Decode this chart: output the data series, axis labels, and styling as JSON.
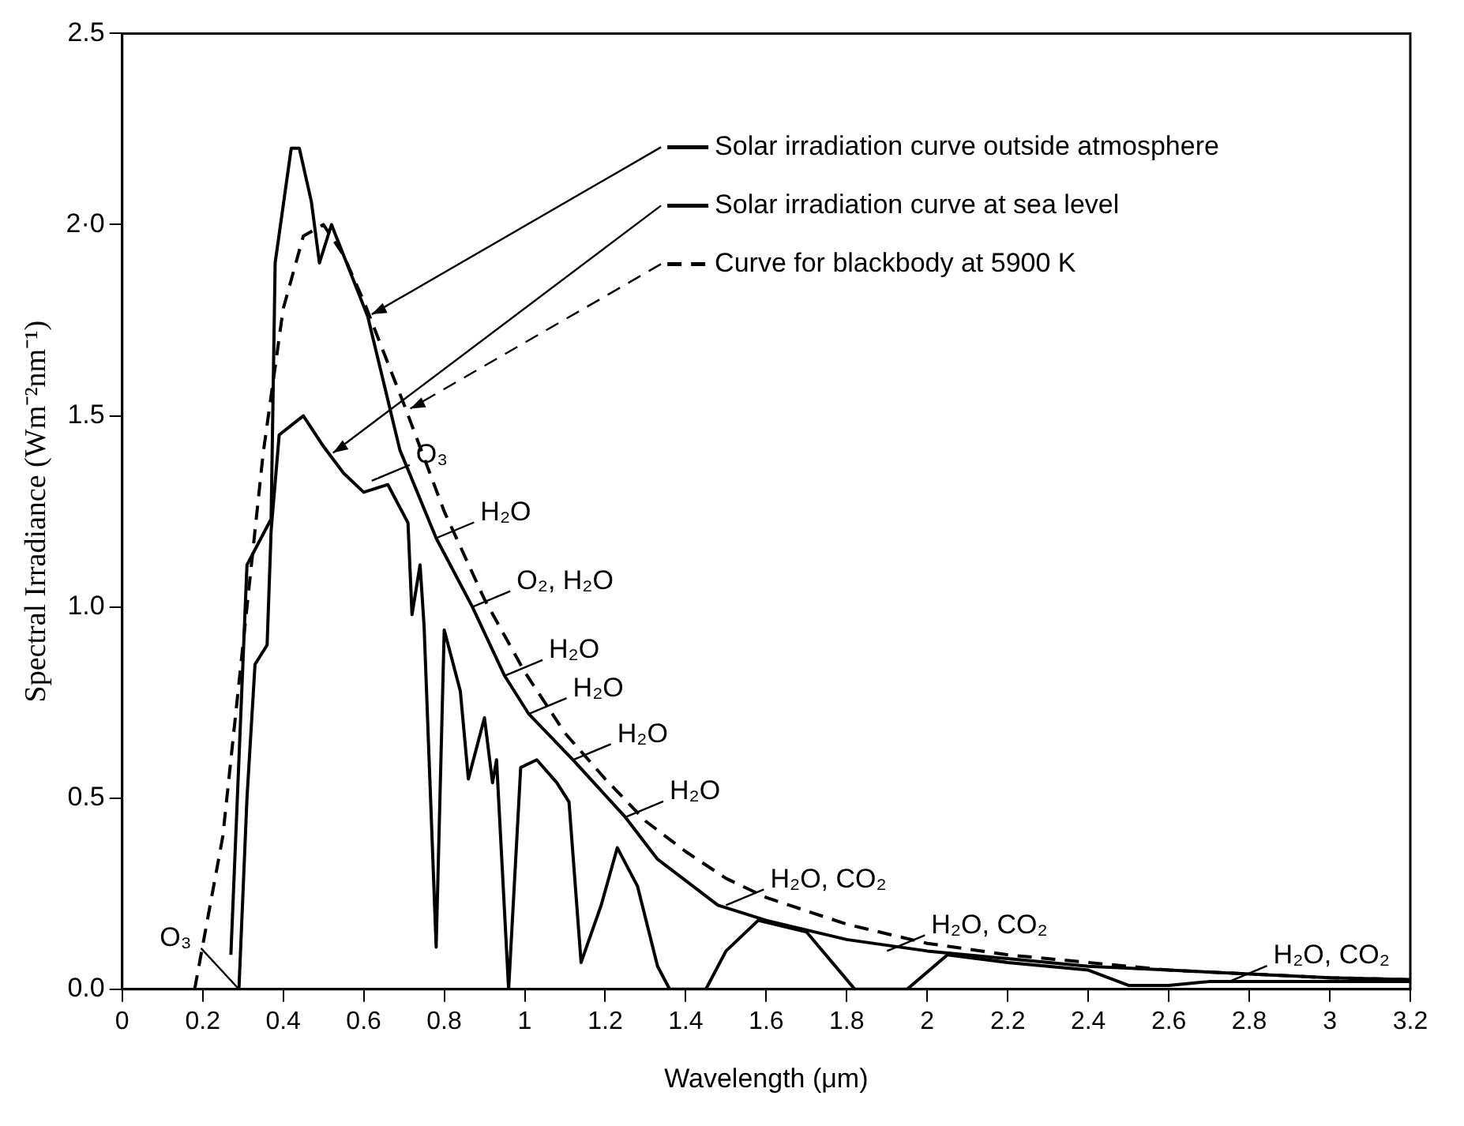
{
  "chart_data": {
    "type": "line",
    "xlabel": "Wavelength (μm)",
    "ylabel": "Spectral Irradiance (Wm⁻²nm⁻¹)",
    "xlim": [
      0,
      3.2
    ],
    "xticks": [
      0,
      0.2,
      0.4,
      0.6,
      0.8,
      1.0,
      1.2,
      1.4,
      1.6,
      1.8,
      2.0,
      2.2,
      2.4,
      2.6,
      2.8,
      3.0,
      3.2
    ],
    "ylim": [
      0,
      2.5
    ],
    "yticks": [
      {
        "value": 0,
        "label": "0.0"
      },
      0.5,
      {
        "value": 1,
        "label": "1.0"
      },
      1.5,
      {
        "value": 2,
        "label": "2·0"
      },
      2.5
    ],
    "grid": false,
    "legend": "top right",
    "marker": "none",
    "series": [
      {
        "name": "Solar irradiation curve outside atmosphere",
        "color": "#000000",
        "line_style": "solid",
        "x": [
          0.27,
          0.31,
          0.37,
          0.38,
          0.42,
          0.44,
          0.47,
          0.49,
          0.52,
          0.61,
          0.69,
          0.78,
          0.87,
          0.95,
          1.01,
          1.12,
          1.25,
          1.33,
          1.48,
          1.6,
          1.8,
          2.0,
          2.2,
          2.4,
          2.6,
          2.8,
          3.0,
          3.2
        ],
        "values": [
          0.09,
          1.11,
          1.23,
          1.9,
          2.2,
          2.2,
          2.06,
          1.9,
          2.0,
          1.76,
          1.41,
          1.18,
          1.0,
          0.82,
          0.72,
          0.6,
          0.45,
          0.34,
          0.22,
          0.18,
          0.13,
          0.1,
          0.08,
          0.06,
          0.05,
          0.04,
          0.03,
          0.025
        ]
      },
      {
        "name": "Solar irradiation curve at sea level",
        "color": "#000000",
        "line_style": "solid",
        "x": [
          0.29,
          0.31,
          0.33,
          0.36,
          0.37,
          0.39,
          0.45,
          0.5,
          0.55,
          0.6,
          0.66,
          0.71,
          0.72,
          0.74,
          0.75,
          0.78,
          0.8,
          0.81,
          0.84,
          0.86,
          0.9,
          0.92,
          0.93,
          0.96,
          0.99,
          1.03,
          1.08,
          1.11,
          1.14,
          1.19,
          1.23,
          1.28,
          1.33,
          1.36,
          1.45,
          1.5,
          1.58,
          1.7,
          1.78,
          1.82,
          1.95,
          2.05,
          2.2,
          2.4,
          2.5,
          2.6,
          2.7,
          3.0,
          3.2
        ],
        "values": [
          0,
          0.5,
          0.85,
          0.9,
          1.2,
          1.45,
          1.5,
          1.42,
          1.35,
          1.3,
          1.32,
          1.22,
          0.98,
          1.11,
          0.95,
          0.11,
          0.94,
          0.9,
          0.78,
          0.55,
          0.71,
          0.54,
          0.6,
          0.0,
          0.58,
          0.6,
          0.54,
          0.49,
          0.07,
          0.22,
          0.37,
          0.27,
          0.06,
          0,
          0,
          0.1,
          0.18,
          0.15,
          0.05,
          0,
          0,
          0.09,
          0.07,
          0.05,
          0.01,
          0.01,
          0.02,
          0.02,
          0.02
        ]
      },
      {
        "name": "Curve for blackbody at 5900 K",
        "color": "#000000",
        "line_style": "dashed",
        "x": [
          0.18,
          0.25,
          0.3,
          0.35,
          0.4,
          0.45,
          0.5,
          0.55,
          0.6,
          0.7,
          0.8,
          0.9,
          1.0,
          1.1,
          1.2,
          1.3,
          1.4,
          1.5,
          1.6,
          1.8,
          2.0,
          2.2,
          2.4,
          2.6,
          2.8,
          3.0,
          3.2
        ],
        "values": [
          0,
          0.4,
          0.9,
          1.4,
          1.78,
          1.97,
          2.0,
          1.92,
          1.8,
          1.53,
          1.25,
          1.02,
          0.83,
          0.67,
          0.55,
          0.44,
          0.36,
          0.29,
          0.24,
          0.17,
          0.12,
          0.09,
          0.07,
          0.05,
          0.04,
          0.03,
          0.025
        ]
      }
    ],
    "annotations": [
      {
        "text": "O₃",
        "x": 0.62,
        "y": 1.33
      },
      {
        "text": "H₂O",
        "x": 0.78,
        "y": 1.18
      },
      {
        "text": "O₂, H₂O",
        "x": 0.87,
        "y": 1.0
      },
      {
        "text": "H₂O",
        "x": 0.95,
        "y": 0.82
      },
      {
        "text": "H₂O",
        "x": 1.01,
        "y": 0.72
      },
      {
        "text": "H₂O",
        "x": 1.12,
        "y": 0.6
      },
      {
        "text": "H₂O",
        "x": 1.25,
        "y": 0.45
      },
      {
        "text": "H₂O, CO₂",
        "x": 1.5,
        "y": 0.22
      },
      {
        "text": "H₂O, CO₂",
        "x": 1.9,
        "y": 0.1
      },
      {
        "text": "H₂O, CO₂",
        "x": 2.75,
        "y": 0.02
      },
      {
        "text": "O₃",
        "x": 0.29,
        "y": 0
      }
    ]
  }
}
